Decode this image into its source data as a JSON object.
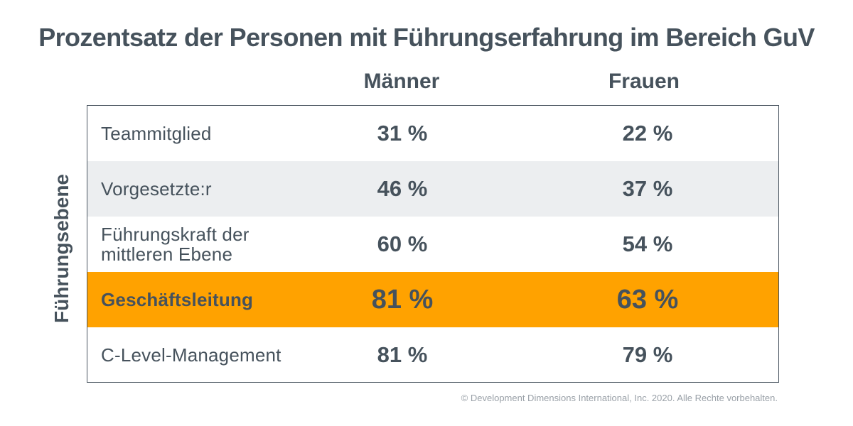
{
  "chart_data": {
    "type": "table",
    "title": "Prozentsatz der Personen mit Führungserfahrung im Bereich GuV",
    "row_axis_label": "Führungsebene",
    "columns": [
      "Männer",
      "Frauen"
    ],
    "rows": [
      {
        "label": "Teammitglied",
        "maenner": "31 %",
        "frauen": "22 %",
        "values": [
          31,
          22
        ]
      },
      {
        "label": "Vorgesetzte:r",
        "maenner": "46 %",
        "frauen": "37 %",
        "values": [
          46,
          37
        ]
      },
      {
        "label": "Führungskraft der mittleren Ebene",
        "maenner": "60 %",
        "frauen": "54 %",
        "values": [
          60,
          54
        ]
      },
      {
        "label": "Geschäftsleitung",
        "maenner": "81 %",
        "frauen": "63 %",
        "values": [
          81,
          63
        ],
        "highlighted": true
      },
      {
        "label": "C-Level-Management",
        "maenner": "81 %",
        "frauen": "79 %",
        "values": [
          81,
          79
        ]
      }
    ],
    "unit": "%",
    "highlight_color": "#ffa200",
    "alt_row_color": "#eceef0"
  },
  "footer": "© Development Dimensions International, Inc. 2020. Alle Rechte vorbehalten."
}
